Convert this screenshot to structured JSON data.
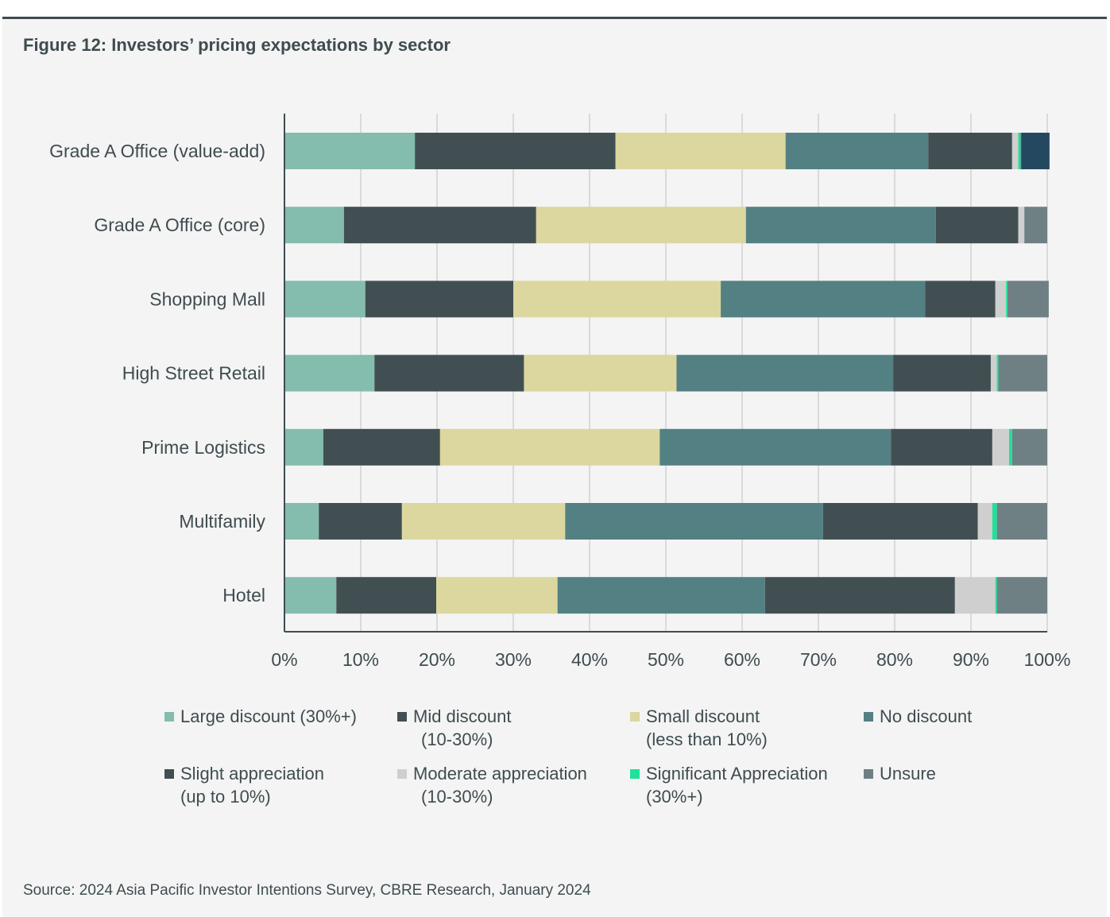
{
  "title": "Figure 12:  Investors’ pricing expectations by sector",
  "source": "Source: 2024 Asia Pacific Investor Intentions Survey, CBRE Research, January 2024",
  "chart_data": {
    "type": "bar",
    "orientation": "horizontal",
    "stacked": true,
    "title": "Figure 12:  Investors’ pricing expectations by sector",
    "xlabel": "",
    "ylabel": "",
    "xlim": [
      0,
      100
    ],
    "grid": true,
    "x_ticks": [
      "0%",
      "10%",
      "20%",
      "30%",
      "40%",
      "50%",
      "60%",
      "70%",
      "80%",
      "90%",
      "100%"
    ],
    "categories": [
      "Grade A Office (value-add)",
      "Grade A Office (core)",
      "Shopping Mall",
      "High Street Retail",
      "Prime Logistics",
      "Multifamily",
      "Hotel"
    ],
    "series": [
      {
        "name": "Large discount (30%+)",
        "legend_lines": [
          "Large discount (30%+)"
        ],
        "color": "#84bcae",
        "values": [
          17.1,
          7.8,
          10.6,
          11.8,
          5.1,
          4.5,
          6.8
        ]
      },
      {
        "name": "Mid discount (10-30%)",
        "legend_lines": [
          "Mid discount",
          "(10-30%)"
        ],
        "color": "#424f52",
        "values": [
          26.3,
          25.2,
          19.4,
          19.6,
          15.3,
          10.9,
          13.1
        ]
      },
      {
        "name": "Small discount (less than 10%)",
        "legend_lines": [
          "Small discount",
          "(less than 10%)"
        ],
        "color": "#dbd79f",
        "values": [
          22.3,
          27.5,
          27.2,
          20.0,
          28.8,
          21.4,
          15.9
        ]
      },
      {
        "name": "No discount",
        "legend_lines": [
          "No discount"
        ],
        "color": "#538083",
        "values": [
          18.7,
          24.9,
          26.8,
          28.4,
          30.3,
          33.8,
          27.2
        ]
      },
      {
        "name": "Slight appreciation (up to 10%)",
        "legend_lines": [
          "Slight appreciation",
          "(up to 10%)"
        ],
        "color": "#424f52",
        "values": [
          11.0,
          10.8,
          9.2,
          12.8,
          13.3,
          20.3,
          24.9
        ]
      },
      {
        "name": "Moderate appreciation (10-30%)",
        "legend_lines": [
          "Moderate appreciation",
          "(10-30%)"
        ],
        "color": "#cfcfcf",
        "values": [
          0.8,
          0.8,
          1.4,
          0.8,
          2.2,
          1.9,
          5.3
        ]
      },
      {
        "name": "Significant Appreciation (30%+)",
        "legend_lines": [
          "Significant Appreciation",
          "(30%+)"
        ],
        "color": "#1ee29a",
        "values": [
          0.3,
          0.0,
          0.2,
          0.2,
          0.4,
          0.6,
          0.2
        ]
      },
      {
        "name": "Unsure",
        "legend_lines": [
          "Unsure"
        ],
        "color": "#6f8084",
        "values": [
          3.5,
          3.0,
          5.4,
          6.4,
          4.6,
          6.6,
          6.6
        ]
      }
    ],
    "extra_segment": {
      "row": "Grade A Office (value-add)",
      "color": "#23485f",
      "start": 96.6,
      "value": 3.7
    },
    "legend_position": "bottom"
  }
}
